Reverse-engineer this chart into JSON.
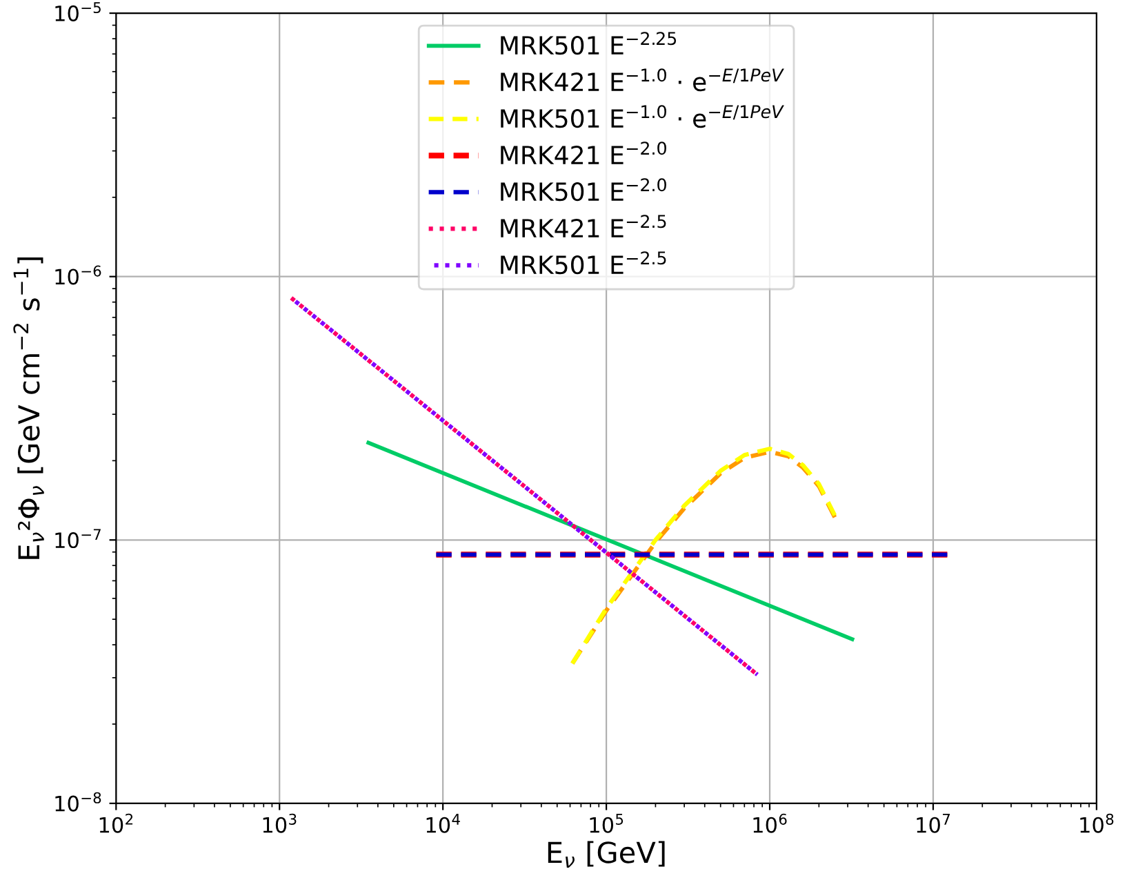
{
  "chart_data": {
    "type": "line",
    "xlabel": "E$_{ν}$ [GeV]",
    "ylabel": "E$_{ν}$²Φ$_{ν}$ [GeV cm$^{−2}$ s$^{−1}$]",
    "log": "xy",
    "grid": true,
    "legend": "top",
    "marker": "none",
    "xlim": [
      100,
      100000000
    ],
    "ylim": [
      1e-08,
      1e-05
    ],
    "xticks": [
      {
        "value": 100,
        "label": "10$^{2}$"
      },
      {
        "value": 1000,
        "label": "10$^{3}$"
      },
      {
        "value": 10000,
        "label": "10$^{4}$"
      },
      {
        "value": 100000,
        "label": "10$^{5}$"
      },
      {
        "value": 1000000,
        "label": "10$^{6}$"
      },
      {
        "value": 10000000,
        "label": "10$^{7}$"
      },
      {
        "value": 100000000,
        "label": "10$^{8}$"
      }
    ],
    "yticks": [
      {
        "value": 1e-08,
        "label": "10$^{−8}$"
      },
      {
        "value": 1e-07,
        "label": "10$^{−7}$"
      },
      {
        "value": 1e-06,
        "label": "10$^{−6}$"
      },
      {
        "value": 1e-05,
        "label": "10$^{−5}$"
      }
    ],
    "series": [
      {
        "name": "MRK501 E$^{−2.25}$",
        "color": "#00cc66",
        "line_style": "solid",
        "x": [
          3500,
          3200000
        ],
        "values": [
          2.34e-07,
          4.2e-08
        ]
      },
      {
        "name": "MRK421 E$^{−1.0}$ · e$^{−E/1PeV}$",
        "color": "#ff9900",
        "line_style": "dashed",
        "x": [
          62000,
          100000,
          200000,
          300000,
          500000,
          700000,
          1000000,
          1300000,
          1600000,
          2000000,
          2500000
        ],
        "values": [
          3.4e-08,
          5.4e-08,
          9.8e-08,
          1.32e-07,
          1.79e-07,
          2.05e-07,
          2.16e-07,
          2.08e-07,
          1.88e-07,
          1.6e-07,
          1.22e-07
        ]
      },
      {
        "name": "MRK501 E$^{−1.0}$ · e$^{−E/1PeV}$",
        "color": "#ffff00",
        "line_style": "dashed",
        "x": [
          62000,
          100000,
          200000,
          300000,
          500000,
          700000,
          1000000,
          1300000,
          1600000,
          2000000,
          2500000
        ],
        "values": [
          3.4e-08,
          5.5e-08,
          1e-07,
          1.35e-07,
          1.83e-07,
          2.1e-07,
          2.22e-07,
          2.12e-07,
          1.92e-07,
          1.63e-07,
          1.24e-07
        ]
      },
      {
        "name": "MRK421 E$^{−2.0}$",
        "color": "#ff0000",
        "line_style": "dashed",
        "x": [
          9100,
          12200000
        ],
        "values": [
          8.8e-08,
          8.8e-08
        ]
      },
      {
        "name": "MRK501 E$^{−2.0}$",
        "color": "#0000cc",
        "line_style": "dashed",
        "x": [
          9100,
          12200000
        ],
        "values": [
          8.8e-08,
          8.8e-08
        ]
      },
      {
        "name": "MRK421 E$^{−2.5}$",
        "color": "#ff0066",
        "line_style": "dotted",
        "x": [
          1180,
          840000
        ],
        "values": [
          8.3e-07,
          3.08e-08
        ]
      },
      {
        "name": "MRK501 E$^{−2.5}$",
        "color": "#8000ff",
        "line_style": "dotted",
        "x": [
          1180,
          840000
        ],
        "values": [
          8.3e-07,
          3.08e-08
        ]
      }
    ]
  }
}
